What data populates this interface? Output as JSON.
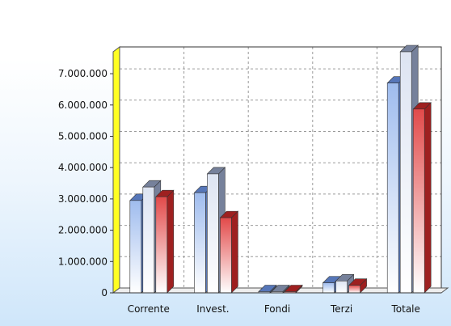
{
  "chart_data": {
    "type": "bar",
    "title": "",
    "xlabel": "",
    "ylabel": "",
    "categories": [
      "Corrente",
      "Invest.",
      "Fondi",
      "Terzi",
      "Totale"
    ],
    "series": [
      {
        "values": [
          2950000,
          3200000,
          15000,
          320000,
          6700000
        ]
      },
      {
        "values": [
          3380000,
          3800000,
          15000,
          380000,
          7700000
        ]
      },
      {
        "values": [
          3070000,
          2400000,
          15000,
          240000,
          5870000
        ]
      }
    ],
    "ylim": [
      0,
      7700000
    ],
    "yticks": [
      0,
      1000000,
      2000000,
      3000000,
      4000000,
      5000000,
      6000000,
      7000000
    ],
    "ytick_labels": [
      "0",
      "1.000.000",
      "2.000.000",
      "3.000.000",
      "4.000.000",
      "5.000.000",
      "6.000.000",
      "7.000.000"
    ],
    "grid": true,
    "style": "3d",
    "colors": {
      "series": [
        "#8fb2ea",
        "#c9d3e6",
        "#e05858"
      ],
      "series_dark": [
        "#5676b8",
        "#76819b",
        "#9e2020"
      ],
      "axis_wall": "#ffff22",
      "grid": "#9a9a9a"
    }
  }
}
